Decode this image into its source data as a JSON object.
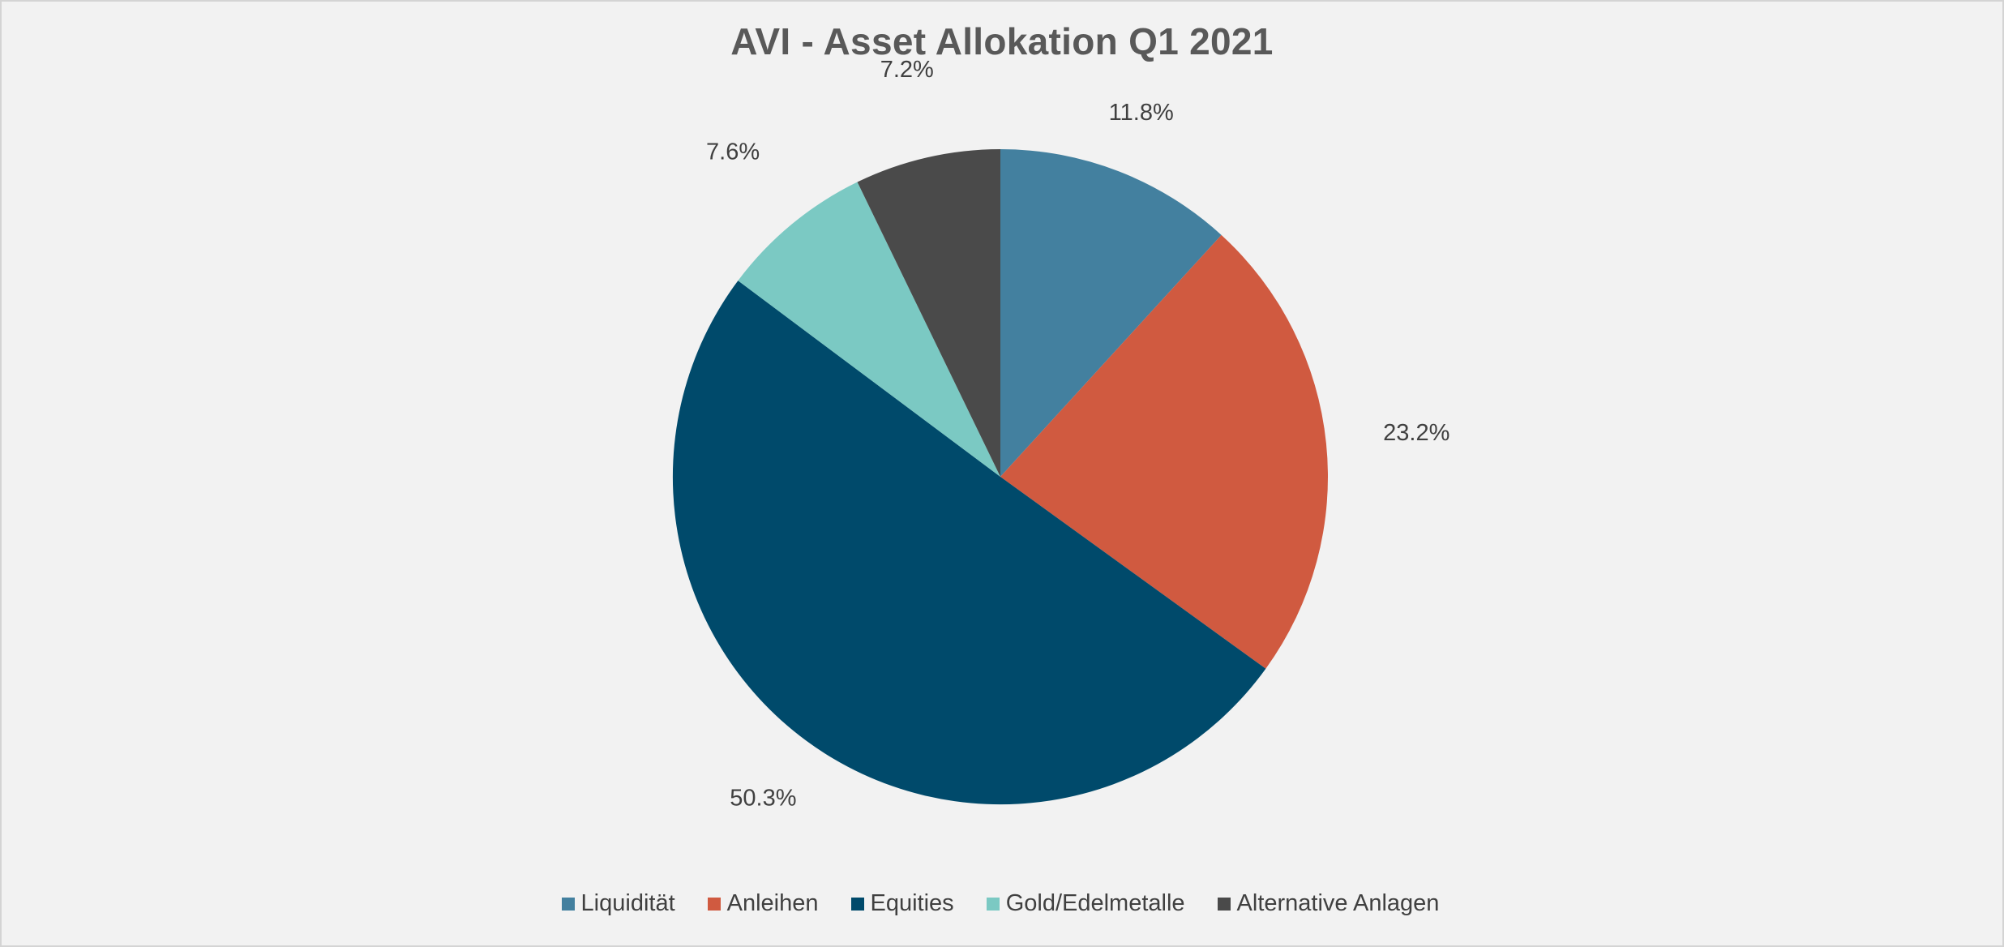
{
  "chart_data": {
    "type": "pie",
    "title": "AVI - Asset Allokation Q1 2021",
    "categories": [
      "Liquidität",
      "Anleihen",
      "Equities",
      "Gold/Edelmetalle",
      "Alternative Anlagen"
    ],
    "values": [
      11.8,
      23.2,
      50.3,
      7.6,
      7.2
    ],
    "labels": [
      "11.8%",
      "23.2%",
      "50.3%",
      "7.6%",
      "7.2%"
    ],
    "colors": [
      "#43809f",
      "#d05a40",
      "#004a6b",
      "#7bc9c3",
      "#4a4a4a"
    ],
    "start_angle": "top (12 o'clock), clockwise",
    "legend_position": "bottom"
  }
}
